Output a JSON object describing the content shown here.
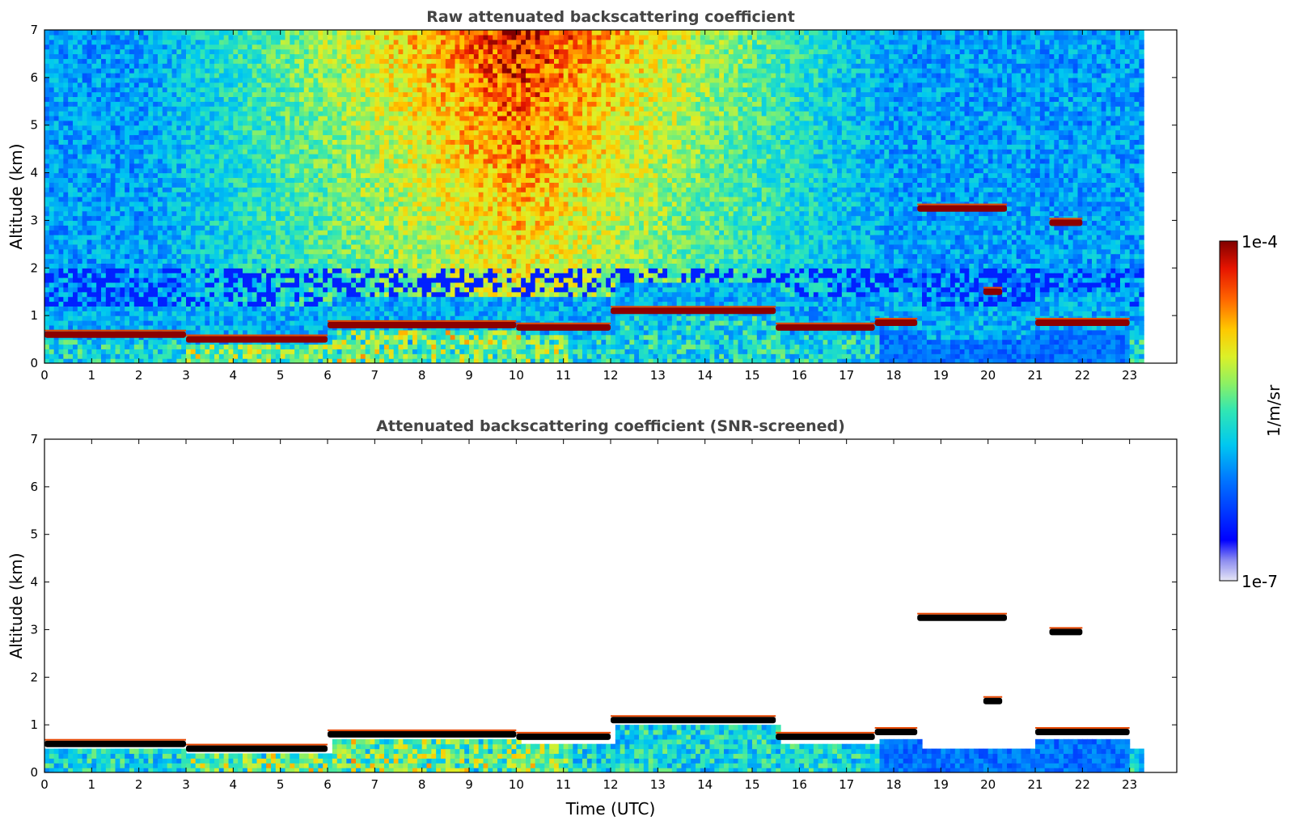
{
  "chart_data": [
    {
      "type": "heatmap",
      "title": "Raw attenuated backscattering coefficient",
      "xlabel": "",
      "ylabel": "Altitude (km)",
      "xlim": [
        0,
        24
      ],
      "ylim": [
        0,
        7
      ],
      "x_ticks": [
        "0",
        "1",
        "2",
        "3",
        "4",
        "5",
        "6",
        "7",
        "8",
        "9",
        "10",
        "11",
        "12",
        "13",
        "14",
        "15",
        "16",
        "17",
        "18",
        "19",
        "20",
        "21",
        "22",
        "23"
      ],
      "y_ticks": [
        "0",
        "1",
        "2",
        "3",
        "4",
        "5",
        "6",
        "7"
      ],
      "data_end_time": 23.3,
      "cloud_layers": [
        {
          "t_start": 0.0,
          "t_end": 3.0,
          "altitude_km": 0.6
        },
        {
          "t_start": 3.0,
          "t_end": 6.0,
          "altitude_km": 0.5
        },
        {
          "t_start": 6.0,
          "t_end": 10.0,
          "altitude_km": 0.8
        },
        {
          "t_start": 10.0,
          "t_end": 12.0,
          "altitude_km": 0.75
        },
        {
          "t_start": 12.0,
          "t_end": 15.5,
          "altitude_km": 1.1
        },
        {
          "t_start": 15.5,
          "t_end": 17.6,
          "altitude_km": 0.75
        },
        {
          "t_start": 17.6,
          "t_end": 18.5,
          "altitude_km": 0.85
        },
        {
          "t_start": 18.5,
          "t_end": 20.4,
          "altitude_km": 3.25
        },
        {
          "t_start": 19.9,
          "t_end": 20.3,
          "altitude_km": 1.5
        },
        {
          "t_start": 21.3,
          "t_end": 22.0,
          "altitude_km": 2.95
        },
        {
          "t_start": 21.0,
          "t_end": 23.0,
          "altitude_km": 0.85
        }
      ],
      "grid": false
    },
    {
      "type": "heatmap",
      "title": "Attenuated backscattering coefficient (SNR-screened)",
      "xlabel": "Time (UTC)",
      "ylabel": "Altitude (km)",
      "xlim": [
        0,
        24
      ],
      "ylim": [
        0,
        7
      ],
      "x_ticks": [
        "0",
        "1",
        "2",
        "3",
        "4",
        "5",
        "6",
        "7",
        "8",
        "9",
        "10",
        "11",
        "12",
        "13",
        "14",
        "15",
        "16",
        "17",
        "18",
        "19",
        "20",
        "21",
        "22",
        "23"
      ],
      "y_ticks": [
        "0",
        "1",
        "2",
        "3",
        "4",
        "5",
        "6",
        "7"
      ],
      "data_end_time": 23.3,
      "grid": false
    }
  ],
  "colorbar": {
    "label": "1/m/sr",
    "min_label": "1e-7",
    "max_label": "1e-4",
    "scale": "log",
    "min": 1e-07,
    "max": 0.0001,
    "colormap": "jet"
  }
}
